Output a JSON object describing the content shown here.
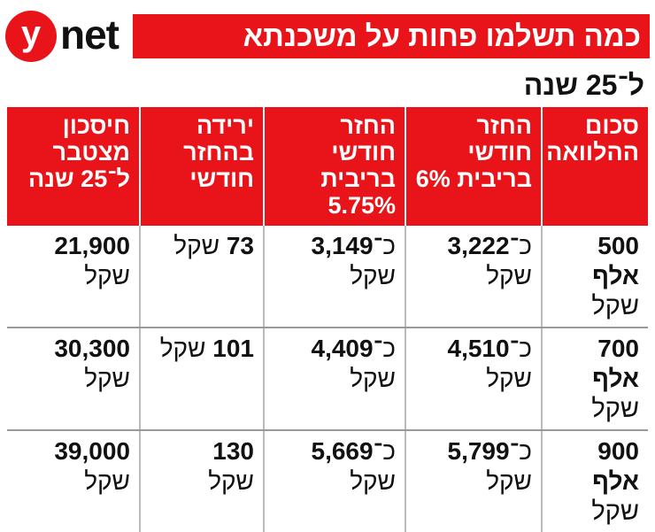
{
  "brand": {
    "logo_letter": "y",
    "logo_word": "net",
    "accent": "#e8141a"
  },
  "title": "כמה תשלמו פחות על משכנתא",
  "subtitle": "ל־25 שנה",
  "currency": "שקל",
  "approx_prefix": "כ־",
  "columns": [
    "סכום ההלוואה",
    "החזר חודשי בריבית 6%",
    "החזר חודשי בריבית 5.75%",
    "ירידה בהחזר חודשי",
    "חיסכון מצטבר ל־25 שנה"
  ],
  "rows": [
    {
      "loan": "500 אלף",
      "repay_6": "3,222",
      "repay_575": "3,149",
      "drop": "73",
      "savings": "21,900"
    },
    {
      "loan": "700 אלף",
      "repay_6": "4,510",
      "repay_575": "4,409",
      "drop": "101",
      "savings": "30,300"
    },
    {
      "loan": "900 אלף",
      "repay_6": "5,799",
      "repay_575": "5,669",
      "drop": "130",
      "savings": "39,000"
    }
  ],
  "chart_data": {
    "type": "table",
    "title": "כמה תשלמו פחות על משכנתא",
    "subtitle": "ל־25 שנה",
    "columns": [
      "סכום ההלוואה",
      "החזר חודשי בריבית 6%",
      "החזר חודשי בריבית 5.75%",
      "ירידה בהחזר חודשי",
      "חיסכון מצטבר ל־25 שנה"
    ],
    "rows": [
      [
        "500 אלף שקל",
        "כ־3,222 שקל",
        "כ־3,149 שקל",
        "73 שקל",
        "21,900 שקל"
      ],
      [
        "700 אלף שקל",
        "כ־4,510 שקל",
        "כ־4,409 שקל",
        "101 שקל",
        "30,300 שקל"
      ],
      [
        "900 אלף שקל",
        "כ־5,799 שקל",
        "כ־5,669 שקל",
        "130 שקל",
        "39,000 שקל"
      ]
    ]
  }
}
